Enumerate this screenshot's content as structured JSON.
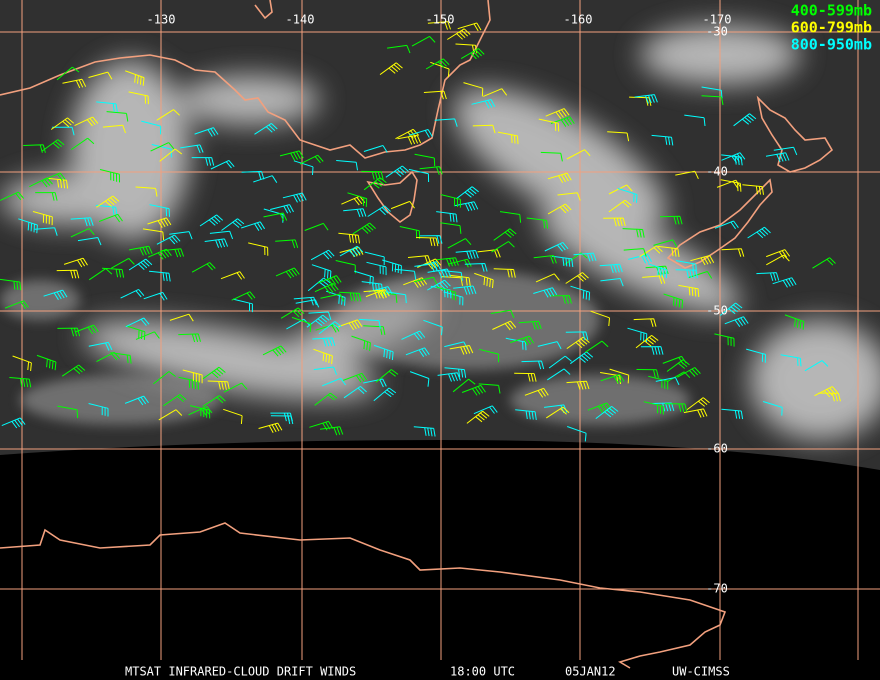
{
  "map": {
    "longitude_labels": [
      "-130",
      "-140",
      "-150",
      "-160",
      "-170"
    ],
    "latitude_labels": [
      "-30",
      "-40",
      "-50",
      "-60",
      "-70"
    ],
    "legend": [
      {
        "label": "400-599mb",
        "color": "#00ff00"
      },
      {
        "label": "600-799mb",
        "color": "#ffff00"
      },
      {
        "label": "800-950mb",
        "color": "#00ffff"
      }
    ],
    "footer": {
      "product": "MTSAT INFRARED-CLOUD DRIFT WINDS",
      "time": "18:00 UTC",
      "date": "05JAN12",
      "source": "UW-CIMSS"
    }
  }
}
